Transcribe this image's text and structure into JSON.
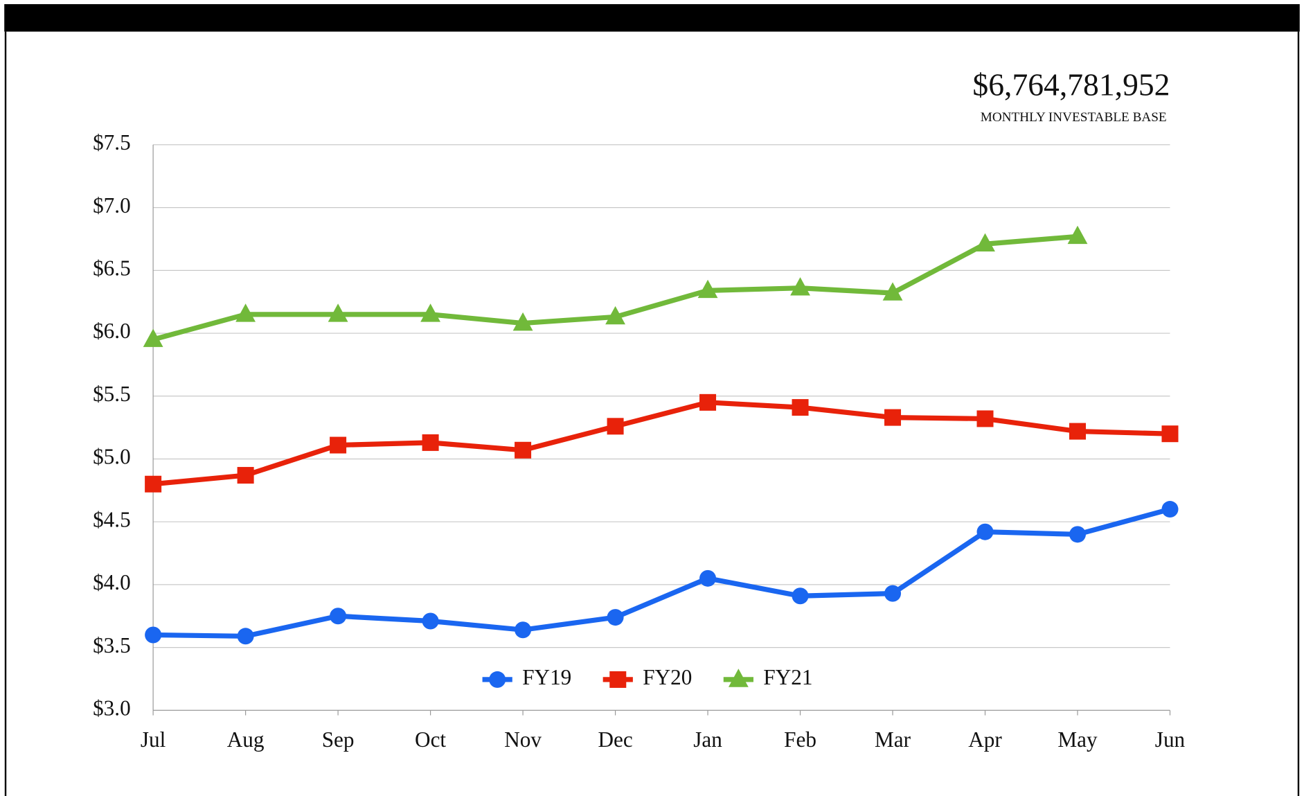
{
  "chart_data": {
    "type": "line",
    "headline": {
      "amount": "$6,764,781,952",
      "caption": "MONTHLY INVESTABLE BASE"
    },
    "categories": [
      "Jul",
      "Aug",
      "Sep",
      "Oct",
      "Nov",
      "Dec",
      "Jan",
      "Feb",
      "Mar",
      "Apr",
      "May",
      "Jun"
    ],
    "series": [
      {
        "name": "FY19",
        "color": "#1a66f0",
        "marker": "circle",
        "values": [
          3.6,
          3.59,
          3.75,
          3.71,
          3.64,
          3.74,
          4.05,
          3.91,
          3.93,
          4.42,
          4.4,
          4.6
        ]
      },
      {
        "name": "FY20",
        "color": "#e8220a",
        "marker": "square",
        "values": [
          4.8,
          4.87,
          5.11,
          5.13,
          5.07,
          5.26,
          5.45,
          5.41,
          5.33,
          5.32,
          5.22,
          5.2
        ]
      },
      {
        "name": "FY21",
        "color": "#71b93a",
        "marker": "triangle",
        "values": [
          5.95,
          6.15,
          6.15,
          6.15,
          6.08,
          6.13,
          6.34,
          6.36,
          6.32,
          6.71,
          6.77,
          null
        ]
      }
    ],
    "ylim": [
      3.0,
      7.5
    ],
    "yticks": [
      {
        "value": 3.0,
        "label": "$3.0"
      },
      {
        "value": 3.5,
        "label": "$3.5"
      },
      {
        "value": 4.0,
        "label": "$4.0"
      },
      {
        "value": 4.5,
        "label": "$4.5"
      },
      {
        "value": 5.0,
        "label": "$5.0"
      },
      {
        "value": 5.5,
        "label": "$5.5"
      },
      {
        "value": 6.0,
        "label": "$6.0"
      },
      {
        "value": 6.5,
        "label": "$6.5"
      },
      {
        "value": 7.0,
        "label": "$7.0"
      },
      {
        "value": 7.5,
        "label": "$7.5"
      }
    ],
    "grid": true,
    "legend": "lower center"
  }
}
